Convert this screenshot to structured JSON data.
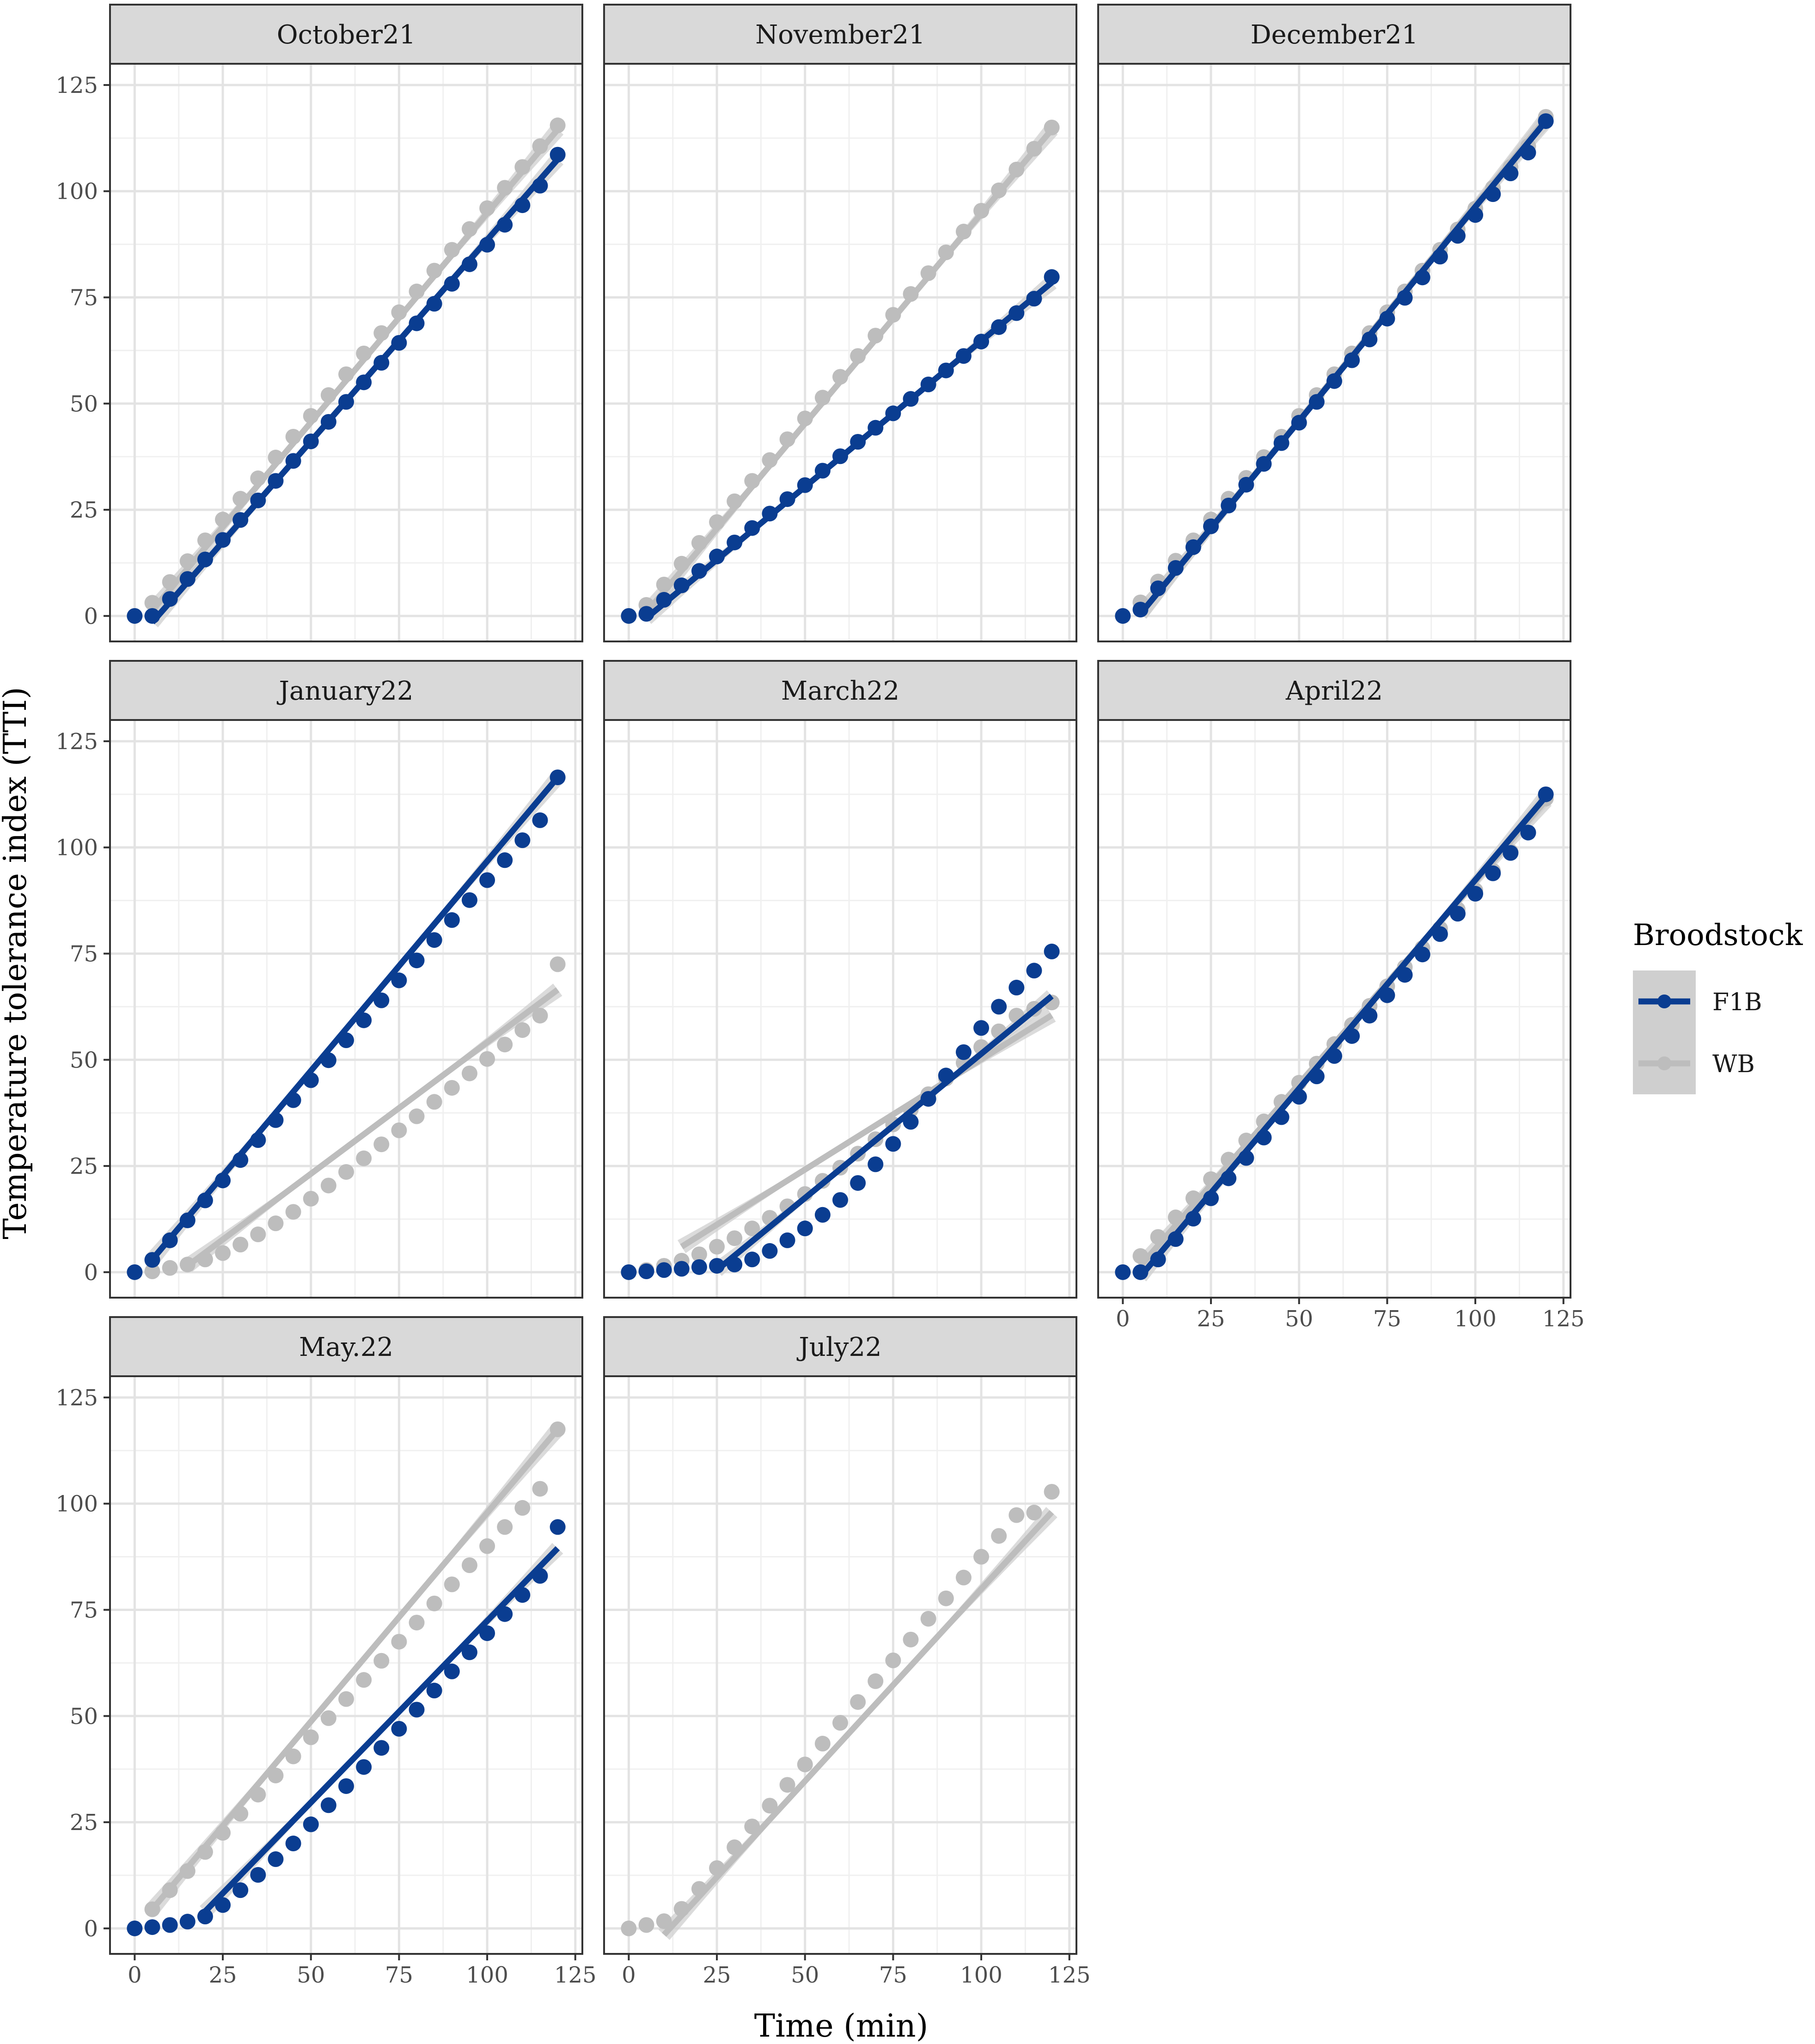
{
  "chart_data": {
    "type": "scatter",
    "layout": "faceted scatter with linear fit lines and confidence bands",
    "xlabel": "Time (min)",
    "ylabel": "Temperature tolerance index (TTI)",
    "xlim": [
      0,
      125
    ],
    "ylim": [
      0,
      125
    ],
    "xticks": [
      "0",
      "25",
      "50",
      "75",
      "100",
      "125"
    ],
    "yticks": [
      "0",
      "25",
      "50",
      "75",
      "100",
      "125"
    ],
    "grid": true,
    "legend": {
      "title": "Broodstock",
      "position": "right",
      "entries": [
        {
          "label": "F1B",
          "color": "#0a3d91"
        },
        {
          "label": "WB",
          "color": "#bdbdbd"
        }
      ]
    },
    "colors": {
      "F1B": "#0a3d91",
      "WB": "#bdbdbd",
      "band": "#cfcfcf",
      "strip": "#d9d9d9"
    },
    "x": [
      0,
      5,
      10,
      15,
      20,
      25,
      30,
      35,
      40,
      45,
      50,
      55,
      60,
      65,
      70,
      75,
      80,
      85,
      90,
      95,
      100,
      105,
      110,
      115,
      120
    ],
    "panels": [
      {
        "title": "October21",
        "series": [
          {
            "name": "WB",
            "values": [
              0,
              3.1,
              8,
              12.9,
              17.8,
              22.7,
              27.6,
              32.4,
              37.3,
              42.2,
              47.1,
              52,
              56.9,
              61.8,
              66.6,
              71.5,
              76.4,
              81.3,
              86.2,
              91.1,
              96,
              100.8,
              105.7,
              110.6,
              115.5
            ],
            "fit": [
              [
                5,
                1.3
              ],
              [
                120,
                114.5
              ]
            ]
          },
          {
            "name": "F1B",
            "values": [
              0,
              0,
              4,
              8.7,
              13.3,
              17.9,
              22.6,
              27.2,
              31.8,
              36.5,
              41.1,
              45.7,
              50.4,
              55,
              59.6,
              64.3,
              68.9,
              73.5,
              78.2,
              82.8,
              87.4,
              92.1,
              96.7,
              101.3,
              108.6
            ],
            "fit": [
              [
                5,
                -1.5
              ],
              [
                120,
                107.5
              ]
            ]
          }
        ]
      },
      {
        "title": "November21",
        "series": [
          {
            "name": "WB",
            "values": [
              0,
              2.6,
              7.4,
              12.3,
              17.2,
              22.1,
              27,
              31.8,
              36.7,
              41.6,
              46.5,
              51.4,
              56.3,
              61.2,
              66,
              70.9,
              75.8,
              80.7,
              85.6,
              90.5,
              95.4,
              100.2,
              105.1,
              110,
              115
            ],
            "fit": [
              [
                5,
                0.8
              ],
              [
                120,
                114.5
              ]
            ]
          },
          {
            "name": "F1B",
            "values": [
              0,
              0.5,
              3.8,
              7.2,
              10.6,
              14,
              17.3,
              20.7,
              24.1,
              27.5,
              30.8,
              34.2,
              37.6,
              41,
              44.3,
              47.7,
              51.1,
              54.5,
              57.8,
              61.2,
              64.6,
              68,
              71.3,
              74.7,
              79.8
            ],
            "fit": [
              [
                5,
                -0.5
              ],
              [
                120,
                78.5
              ]
            ]
          }
        ]
      },
      {
        "title": "December21",
        "series": [
          {
            "name": "WB",
            "values": [
              0,
              3.2,
              8.1,
              13,
              17.8,
              22.7,
              27.6,
              32.5,
              37.4,
              42.2,
              47.1,
              52,
              56.9,
              61.8,
              66.6,
              71.5,
              76.4,
              81.3,
              86.2,
              91,
              95.9,
              100.8,
              105.7,
              110.6,
              117.5
            ],
            "fit": [
              [
                5,
                0.5
              ],
              [
                120,
                117
              ]
            ]
          },
          {
            "name": "F1B",
            "values": [
              0,
              1.5,
              6.5,
              11.3,
              16.2,
              21.1,
              26,
              30.9,
              35.8,
              40.7,
              45.5,
              50.4,
              55.3,
              60.2,
              65.1,
              70,
              74.9,
              79.7,
              84.6,
              89.5,
              94.4,
              99.3,
              104.2,
              109.1,
              116.5
            ],
            "fit": [
              [
                5,
                0.5
              ],
              [
                120,
                116.5
              ]
            ]
          }
        ]
      },
      {
        "title": "January22",
        "series": [
          {
            "name": "WB",
            "values": [
              0,
              0.2,
              1,
              1.8,
              3,
              4.5,
              6.5,
              8.9,
              11.5,
              14.2,
              17.3,
              20.4,
              23.6,
              26.8,
              30.1,
              33.4,
              36.7,
              40.1,
              43.4,
              46.8,
              50.2,
              53.6,
              57,
              60.4,
              72.5
            ],
            "fit": [
              [
                15,
                1.5
              ],
              [
                120,
                66.5
              ]
            ]
          },
          {
            "name": "F1B",
            "values": [
              0,
              2.9,
              7.5,
              12.2,
              16.9,
              21.6,
              26.4,
              31.1,
              35.8,
              40.5,
              45.2,
              49.9,
              54.6,
              59.3,
              64,
              68.7,
              73.4,
              78.2,
              82.9,
              87.6,
              92.3,
              97,
              101.7,
              106.4,
              116.5
            ],
            "fit": [
              [
                5,
                3
              ],
              [
                120,
                116.5
              ]
            ]
          }
        ]
      },
      {
        "title": "March22",
        "series": [
          {
            "name": "WB",
            "values": [
              0,
              0.5,
              1.5,
              2.7,
              4.2,
              6,
              8,
              10.3,
              12.8,
              15.5,
              18.4,
              21.5,
              24.6,
              27.9,
              31.3,
              34.8,
              38.3,
              41.9,
              45.6,
              49.3,
              53,
              56.7,
              60.4,
              62,
              63.5
            ],
            "fit": [
              [
                15,
                6
              ],
              [
                120,
                60.5
              ]
            ]
          },
          {
            "name": "F1B",
            "values": [
              0,
              0.2,
              0.5,
              0.8,
              1.2,
              1.5,
              1.8,
              3,
              5,
              7.5,
              10.3,
              13.5,
              17,
              21,
              25.4,
              30.2,
              35.4,
              40.8,
              46.3,
              51.8,
              57.5,
              62.5,
              67,
              71,
              75.5
            ],
            "fit": [
              [
                25,
                0.5
              ],
              [
                120,
                65
              ]
            ]
          }
        ]
      },
      {
        "title": "April22",
        "series": [
          {
            "name": "WB",
            "values": [
              0,
              3.8,
              8.3,
              12.9,
              17.4,
              21.9,
              26.5,
              31,
              35.5,
              40.1,
              44.6,
              49.1,
              53.7,
              58.2,
              62.7,
              67.3,
              71.8,
              76.3,
              80.9,
              85.4,
              89.9,
              94.5,
              99,
              103.5,
              111.5
            ],
            "fit": [
              [
                5,
                1.5
              ],
              [
                120,
                111
              ]
            ]
          },
          {
            "name": "F1B",
            "values": [
              0,
              0,
              3,
              7.8,
              12.6,
              17.4,
              22.1,
              26.9,
              31.7,
              36.5,
              41.3,
              46.1,
              50.9,
              55.6,
              60.4,
              65.2,
              70,
              74.8,
              79.6,
              84.4,
              89.1,
              93.9,
              98.7,
              103.5,
              112.5
            ],
            "fit": [
              [
                5,
                -1
              ],
              [
                120,
                112
              ]
            ]
          }
        ]
      },
      {
        "title": "May.22",
        "series": [
          {
            "name": "WB",
            "values": [
              0,
              4.5,
              9,
              13.5,
              18,
              22.5,
              27,
              31.5,
              36,
              40.5,
              45,
              49.5,
              54,
              58.5,
              63,
              67.5,
              72,
              76.5,
              81,
              85.5,
              90,
              94.5,
              99,
              103.5,
              117.5
            ],
            "fit": [
              [
                5,
                4.5
              ],
              [
                120,
                117.5
              ]
            ]
          },
          {
            "name": "F1B",
            "values": [
              0,
              0.3,
              0.8,
              1.6,
              2.8,
              5.5,
              9,
              12.6,
              16.3,
              20,
              24.5,
              29,
              33.5,
              38,
              42.5,
              47,
              51.5,
              56,
              60.5,
              65,
              69.5,
              74,
              78.5,
              83,
              94.5
            ],
            "fit": [
              [
                20,
                4
              ],
              [
                120,
                89.5
              ]
            ]
          }
        ]
      },
      {
        "title": "July22",
        "series": [
          {
            "name": "WB",
            "values": [
              0,
              0.8,
              1.7,
              4.6,
              9.3,
              14.2,
              19.1,
              24,
              28.9,
              33.8,
              38.6,
              43.5,
              48.4,
              53.3,
              58.2,
              63.1,
              68,
              72.9,
              77.7,
              82.6,
              87.5,
              92.4,
              97.3,
              97.9,
              102.8
            ],
            "fit": [
              [
                10,
                -1.5
              ],
              [
                120,
                98
              ]
            ]
          }
        ]
      }
    ]
  }
}
